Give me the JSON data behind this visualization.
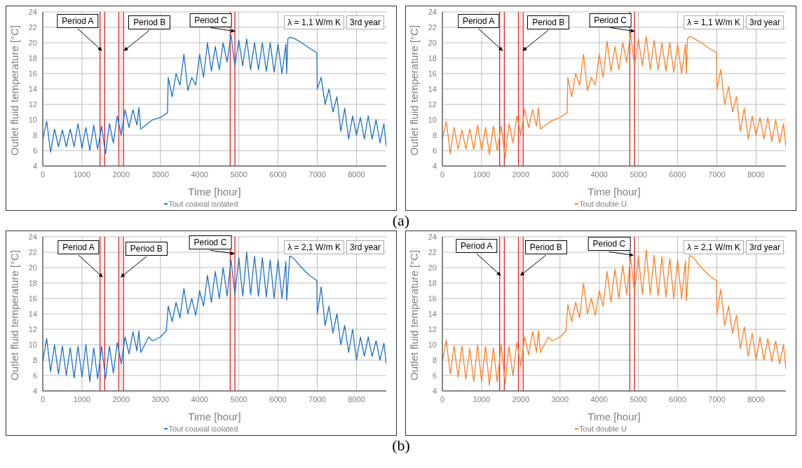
{
  "chart_data": [
    {
      "type": "line",
      "xlabel": "Time [hour]",
      "ylabel": "Outlet fluid temperature [°C]",
      "xlim": [
        0,
        8760
      ],
      "xticks": [
        0,
        1000,
        2000,
        3000,
        4000,
        5000,
        6000,
        7000,
        8000
      ],
      "ylim": [
        4,
        24
      ],
      "yticks": [
        4,
        6,
        8,
        10,
        12,
        14,
        16,
        18,
        20,
        22,
        24
      ],
      "grid": true,
      "legend": "bottom",
      "series": [
        {
          "name": "Tout coaxial isolated",
          "color": "#1e70c6",
          "x": [
            0,
            100,
            200,
            300,
            400,
            500,
            600,
            700,
            800,
            900,
            1000,
            1100,
            1200,
            1300,
            1400,
            1500,
            1600,
            1700,
            1800,
            1900,
            2000,
            2100,
            2200,
            2300,
            2400,
            2450,
            2500,
            2600,
            2800,
            3000,
            3180,
            3200,
            3300,
            3400,
            3500,
            3600,
            3700,
            3800,
            3900,
            4000,
            4100,
            4200,
            4300,
            4400,
            4500,
            4600,
            4700,
            4800,
            4900,
            5000,
            5100,
            5200,
            5300,
            5400,
            5500,
            5600,
            5700,
            5800,
            5900,
            6000,
            6100,
            6200,
            6220,
            6250,
            6300,
            6400,
            6600,
            6800,
            6990,
            7000,
            7100,
            7200,
            7300,
            7400,
            7500,
            7600,
            7700,
            7800,
            7900,
            8000,
            8100,
            8200,
            8300,
            8400,
            8500,
            8600,
            8700,
            8760
          ],
          "values": [
            7.5,
            9.8,
            5.8,
            8.8,
            6.5,
            8.7,
            6.5,
            8.8,
            6.5,
            9.5,
            6.3,
            9,
            6,
            9.3,
            6.2,
            9.2,
            5.6,
            9.5,
            7,
            10.5,
            8,
            11.3,
            9,
            11.3,
            9.3,
            11.6,
            8.8,
            9.2,
            10,
            10.3,
            10.9,
            15.5,
            13,
            16,
            14.5,
            18.5,
            13.8,
            15.5,
            14.5,
            18.5,
            15.5,
            20,
            16.3,
            19.5,
            16.5,
            20,
            17.5,
            21,
            17,
            20.3,
            17,
            20.5,
            16.5,
            20,
            16.5,
            20,
            16.3,
            20,
            16.2,
            19.8,
            16,
            19.8,
            16,
            20.5,
            20.7,
            20.6,
            20,
            19.3,
            18.7,
            14,
            15.5,
            12,
            14,
            11,
            13,
            8.5,
            11.5,
            7.5,
            10.5,
            8,
            10.3,
            7.5,
            10.5,
            7.5,
            10,
            7,
            9.5,
            6.5
          ]
        }
      ],
      "ref_lines": [
        {
          "axis": "x",
          "value": 1460,
          "color": "#e02020"
        },
        {
          "axis": "x",
          "value": 1580,
          "color": "#e02020"
        },
        {
          "axis": "x",
          "value": 1940,
          "color": "#e02020"
        },
        {
          "axis": "x",
          "value": 2060,
          "color": "#e02020"
        },
        {
          "axis": "x",
          "value": 4780,
          "color": "#e02020"
        },
        {
          "axis": "x",
          "value": 4900,
          "color": "#e02020"
        }
      ],
      "annotations": [
        "λ = 1,1 W/m K",
        "3rd year",
        "(a)",
        {
          "text": "Period A",
          "x": 1500,
          "y": 19
        },
        {
          "text": "Period B",
          "x": 2080,
          "y": 19
        },
        {
          "text": "Period C",
          "x": 4890,
          "y": 21.5
        }
      ]
    },
    {
      "type": "line",
      "xlabel": "Time [hour]",
      "ylabel": "Outlet fluid temperature [°C]",
      "xlim": [
        0,
        8760
      ],
      "xticks": [
        0,
        1000,
        2000,
        3000,
        4000,
        5000,
        6000,
        7000,
        8000
      ],
      "ylim": [
        4,
        24
      ],
      "yticks": [
        4,
        6,
        8,
        10,
        12,
        14,
        16,
        18,
        20,
        22,
        24
      ],
      "grid": true,
      "legend": "bottom",
      "series": [
        {
          "name": "Tout double U",
          "color": "#fd7f24",
          "x": [
            0,
            100,
            200,
            300,
            400,
            500,
            600,
            700,
            800,
            900,
            1000,
            1100,
            1200,
            1300,
            1400,
            1500,
            1600,
            1700,
            1800,
            1900,
            2000,
            2100,
            2200,
            2300,
            2400,
            2450,
            2500,
            2600,
            2800,
            3000,
            3180,
            3200,
            3300,
            3400,
            3500,
            3600,
            3700,
            3800,
            3900,
            4000,
            4100,
            4200,
            4300,
            4400,
            4500,
            4600,
            4700,
            4800,
            4900,
            5000,
            5100,
            5200,
            5300,
            5400,
            5500,
            5600,
            5700,
            5800,
            5900,
            6000,
            6100,
            6200,
            6220,
            6250,
            6300,
            6400,
            6600,
            6800,
            6990,
            7000,
            7100,
            7200,
            7300,
            7400,
            7500,
            7600,
            7700,
            7800,
            7900,
            8000,
            8100,
            8200,
            8300,
            8400,
            8500,
            8600,
            8700,
            8760
          ],
          "values": [
            7.5,
            9.8,
            5.6,
            9,
            6.2,
            8.7,
            6.2,
            8.8,
            6.2,
            9.3,
            6.1,
            9,
            5.5,
            9.2,
            6,
            9.2,
            5.2,
            9.5,
            7,
            10.5,
            8,
            11.4,
            9,
            11.3,
            9.2,
            11.6,
            8.8,
            9.2,
            9.9,
            10.3,
            10.9,
            15.5,
            13,
            16,
            14.5,
            18.5,
            13.8,
            15.5,
            14.5,
            18.5,
            15.5,
            20.2,
            16.3,
            19.5,
            16.5,
            20,
            17.5,
            21.2,
            17,
            20.5,
            17,
            20.8,
            16.5,
            20.3,
            16.5,
            20,
            16.3,
            20,
            16.2,
            19.8,
            16,
            19.8,
            16,
            20.5,
            20.8,
            20.6,
            20,
            19.3,
            18.7,
            14,
            16.5,
            12,
            14.3,
            11,
            13,
            8.5,
            11.5,
            7.5,
            10.5,
            8,
            10.3,
            7.5,
            10.3,
            7.2,
            10,
            7,
            9.5,
            6.5
          ]
        }
      ],
      "ref_lines": [
        {
          "axis": "x",
          "value": 1460,
          "color": "#e02020"
        },
        {
          "axis": "x",
          "value": 1580,
          "color": "#e02020"
        },
        {
          "axis": "x",
          "value": 1940,
          "color": "#e02020"
        },
        {
          "axis": "x",
          "value": 2060,
          "color": "#e02020"
        },
        {
          "axis": "x",
          "value": 4780,
          "color": "#e02020"
        },
        {
          "axis": "x",
          "value": 4900,
          "color": "#e02020"
        }
      ],
      "annotations": [
        "λ = 1,1 W/m K",
        "3rd year",
        {
          "text": "Period A",
          "x": 1530,
          "y": 19
        },
        {
          "text": "Period B",
          "x": 2060,
          "y": 19
        },
        {
          "text": "Period C",
          "x": 4890,
          "y": 21.5
        }
      ]
    },
    {
      "type": "line",
      "xlabel": "Time [hour]",
      "ylabel": "Outlet fluid temperature [°C]",
      "xlim": [
        0,
        8760
      ],
      "xticks": [
        0,
        1000,
        2000,
        3000,
        4000,
        5000,
        6000,
        7000,
        8000
      ],
      "ylim": [
        4,
        24
      ],
      "yticks": [
        4,
        6,
        8,
        10,
        12,
        14,
        16,
        18,
        20,
        22,
        24
      ],
      "grid": true,
      "legend": "bottom",
      "series": [
        {
          "name": "Tout coaxial isolated",
          "color": "#1e70c6",
          "x": [
            0,
            100,
            200,
            300,
            400,
            500,
            600,
            700,
            800,
            900,
            1000,
            1100,
            1200,
            1300,
            1400,
            1500,
            1600,
            1700,
            1800,
            1900,
            2000,
            2100,
            2200,
            2300,
            2400,
            2450,
            2500,
            2600,
            2700,
            2800,
            3000,
            3150,
            3200,
            3300,
            3400,
            3500,
            3600,
            3700,
            3800,
            3900,
            4000,
            4100,
            4200,
            4300,
            4400,
            4500,
            4600,
            4700,
            4800,
            4900,
            5000,
            5100,
            5200,
            5300,
            5400,
            5500,
            5600,
            5700,
            5800,
            5900,
            6000,
            6100,
            6200,
            6220,
            6300,
            6400,
            6600,
            6800,
            6990,
            7000,
            7100,
            7200,
            7300,
            7400,
            7500,
            7600,
            7700,
            7800,
            7900,
            8000,
            8100,
            8200,
            8300,
            8400,
            8500,
            8600,
            8700,
            8760
          ],
          "values": [
            7.8,
            10.8,
            6.5,
            10,
            6.2,
            9.8,
            6,
            9.6,
            5.7,
            9.8,
            5.8,
            10,
            5.2,
            9.6,
            5.6,
            9.8,
            5.6,
            9.8,
            6.3,
            10.3,
            7.5,
            11,
            8.8,
            11.7,
            9.2,
            11.8,
            9,
            10,
            11,
            10.5,
            11,
            11.8,
            15,
            13,
            15.5,
            13.5,
            17.3,
            14,
            16,
            13.8,
            17,
            15,
            19,
            15.5,
            19.5,
            16,
            20,
            16.3,
            21,
            16.5,
            21.3,
            16.3,
            22,
            16.5,
            21.5,
            16.3,
            21.3,
            16.2,
            21,
            16,
            21,
            16,
            20.8,
            15.8,
            21.5,
            21.2,
            20,
            19,
            18.3,
            14,
            17.5,
            12.5,
            15,
            11.5,
            14,
            10,
            12.5,
            9,
            12,
            8,
            11,
            8.5,
            11,
            8.5,
            10.5,
            8,
            10.2,
            7.5
          ]
        }
      ],
      "ref_lines": [
        {
          "axis": "x",
          "value": 1460,
          "color": "#e02020"
        },
        {
          "axis": "x",
          "value": 1580,
          "color": "#e02020"
        },
        {
          "axis": "x",
          "value": 1940,
          "color": "#e02020"
        },
        {
          "axis": "x",
          "value": 2060,
          "color": "#e02020"
        },
        {
          "axis": "x",
          "value": 4780,
          "color": "#e02020"
        },
        {
          "axis": "x",
          "value": 4900,
          "color": "#e02020"
        }
      ],
      "annotations": [
        "λ = 2,1 W/m K",
        "3rd year",
        "(b)",
        {
          "text": "Period A",
          "x": 1520,
          "y": 18.8
        },
        {
          "text": "Period B",
          "x": 2000,
          "y": 18.8
        },
        {
          "text": "Period C",
          "x": 4880,
          "y": 21.8
        }
      ]
    },
    {
      "type": "line",
      "xlabel": "Time [hour]",
      "ylabel": "Outlet fluid temperature [°C]",
      "xlim": [
        0,
        8760
      ],
      "xticks": [
        0,
        1000,
        2000,
        3000,
        4000,
        5000,
        6000,
        7000,
        8000
      ],
      "ylim": [
        4,
        24
      ],
      "yticks": [
        4,
        6,
        8,
        10,
        12,
        14,
        16,
        18,
        20,
        22,
        24
      ],
      "grid": true,
      "legend": "bottom",
      "series": [
        {
          "name": "Tout double U",
          "color": "#fd7f24",
          "x": [
            0,
            100,
            200,
            300,
            400,
            500,
            600,
            700,
            800,
            900,
            1000,
            1100,
            1200,
            1300,
            1400,
            1500,
            1600,
            1700,
            1800,
            1900,
            2000,
            2100,
            2200,
            2300,
            2400,
            2450,
            2500,
            2600,
            2700,
            2800,
            3000,
            3150,
            3200,
            3300,
            3400,
            3500,
            3600,
            3700,
            3800,
            3900,
            4000,
            4100,
            4200,
            4300,
            4400,
            4500,
            4600,
            4700,
            4800,
            4900,
            5000,
            5100,
            5200,
            5300,
            5400,
            5500,
            5600,
            5700,
            5800,
            5900,
            6000,
            6100,
            6200,
            6220,
            6300,
            6400,
            6600,
            6800,
            6990,
            7000,
            7100,
            7200,
            7300,
            7400,
            7500,
            7600,
            7700,
            7800,
            7900,
            8000,
            8100,
            8200,
            8300,
            8400,
            8500,
            8600,
            8700,
            8760
          ],
          "values": [
            7.8,
            10.6,
            6.2,
            9.8,
            5.8,
            9.8,
            5.5,
            9.5,
            5.2,
            10,
            5.2,
            9.8,
            4.7,
            9.6,
            5.2,
            10,
            5,
            9.8,
            6,
            10.3,
            7.2,
            11,
            8.7,
            11.7,
            9,
            11.8,
            9,
            10,
            11,
            10.5,
            11,
            11.8,
            15.2,
            13,
            15.5,
            13.5,
            18,
            14,
            16,
            13.8,
            17,
            15,
            19.5,
            15.5,
            19.8,
            16,
            20.3,
            16.5,
            21.3,
            16.8,
            21.5,
            16.5,
            22.3,
            16.5,
            21.6,
            16.3,
            21.4,
            16.2,
            21.2,
            16,
            21,
            16,
            20.9,
            15.7,
            21.6,
            21.3,
            20,
            19,
            18.3,
            14,
            17.2,
            12.5,
            15,
            11.5,
            13.8,
            9.5,
            12.3,
            8.5,
            11.5,
            8,
            11,
            8,
            10.8,
            7.8,
            10.5,
            7.5,
            10,
            6.8
          ]
        }
      ],
      "ref_lines": [
        {
          "axis": "x",
          "value": 1460,
          "color": "#e02020"
        },
        {
          "axis": "x",
          "value": 1580,
          "color": "#e02020"
        },
        {
          "axis": "x",
          "value": 1940,
          "color": "#e02020"
        },
        {
          "axis": "x",
          "value": 2060,
          "color": "#e02020"
        },
        {
          "axis": "x",
          "value": 4780,
          "color": "#e02020"
        },
        {
          "axis": "x",
          "value": 4900,
          "color": "#e02020"
        }
      ],
      "annotations": [
        "λ = 2,1 W/m K",
        "3rd year",
        {
          "text": "Period A",
          "x": 1480,
          "y": 19
        },
        {
          "text": "Period B",
          "x": 2000,
          "y": 19
        },
        {
          "text": "Period C",
          "x": 4860,
          "y": 21.6
        }
      ]
    }
  ]
}
